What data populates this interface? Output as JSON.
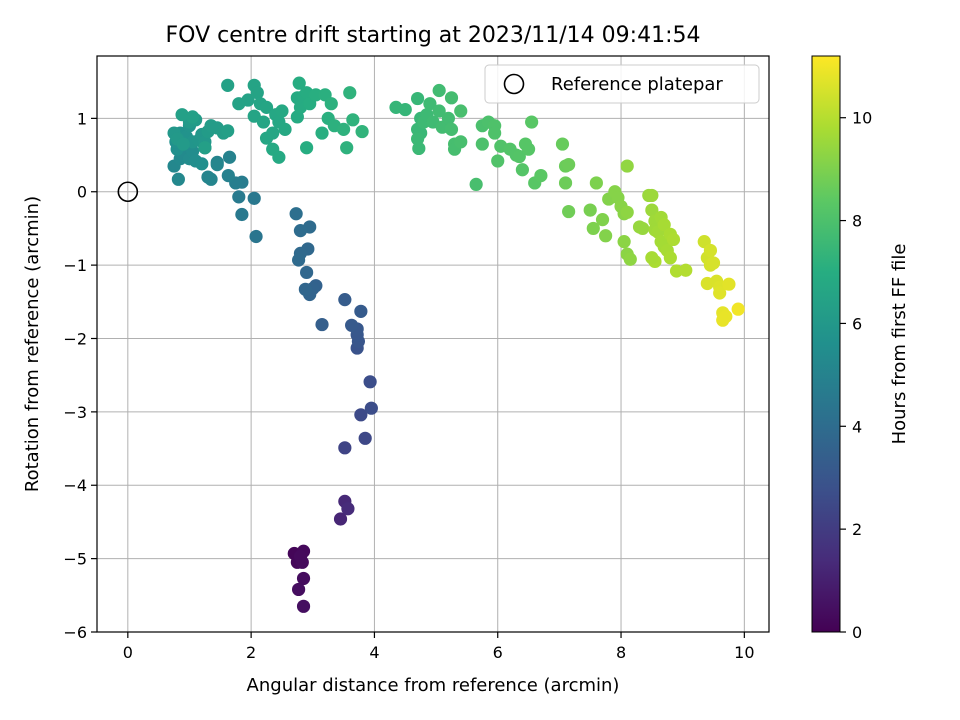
{
  "chart_data": {
    "type": "scatter",
    "title": "FOV centre drift starting at 2023/11/14 09:41:54",
    "xlabel": "Angular distance from reference (arcmin)",
    "ylabel": "Rotation from reference (arcmin)",
    "xlim": [
      -0.5,
      10.4
    ],
    "ylim": [
      -6,
      1.85
    ],
    "xticks": [
      0,
      2,
      4,
      6,
      8,
      10
    ],
    "yticks": [
      -6,
      -5,
      -4,
      -3,
      -2,
      -1,
      0,
      1
    ],
    "xtick_labels": [
      "0",
      "2",
      "4",
      "6",
      "8",
      "10"
    ],
    "ytick_labels": [
      "−6",
      "−5",
      "−4",
      "−3",
      "−2",
      "−1",
      "0",
      "1"
    ],
    "grid": true,
    "colormap": "viridis",
    "colorbar": {
      "label": "Hours from first FF file",
      "range": [
        0,
        11.2
      ],
      "ticks": [
        0,
        2,
        4,
        6,
        8,
        10
      ],
      "tick_labels": [
        "0",
        "2",
        "4",
        "6",
        "8",
        "10"
      ]
    },
    "legend": {
      "placement": "top-right",
      "entries": [
        {
          "label": "Reference platepar",
          "marker": "open-circle",
          "x": 0,
          "y": 0
        }
      ]
    },
    "points": [
      [
        2.7,
        -4.93,
        0.15
      ],
      [
        2.75,
        -5.05,
        0.2
      ],
      [
        2.85,
        -4.9,
        0.25
      ],
      [
        2.83,
        -5.05,
        0.3
      ],
      [
        2.85,
        -5.27,
        0.35
      ],
      [
        2.77,
        -5.42,
        0.4
      ],
      [
        2.85,
        -5.65,
        0.45
      ],
      [
        2.8,
        -4.97,
        0.3
      ],
      [
        3.45,
        -4.46,
        1.2
      ],
      [
        3.52,
        -4.22,
        1.3
      ],
      [
        3.57,
        -4.32,
        1.4
      ],
      [
        3.52,
        -3.49,
        2.3
      ],
      [
        3.85,
        -3.36,
        2.45
      ],
      [
        3.78,
        -3.04,
        2.55
      ],
      [
        3.95,
        -2.95,
        2.65
      ],
      [
        3.93,
        -2.59,
        2.7
      ],
      [
        3.72,
        -2.13,
        2.9
      ],
      [
        3.74,
        -2.04,
        3.0
      ],
      [
        3.72,
        -1.95,
        3.05
      ],
      [
        3.72,
        -1.87,
        3.1
      ],
      [
        3.63,
        -1.82,
        3.2
      ],
      [
        3.78,
        -1.63,
        3.25
      ],
      [
        3.52,
        -1.47,
        3.3
      ],
      [
        3.15,
        -1.81,
        3.4
      ],
      [
        3.05,
        -1.28,
        3.55
      ],
      [
        3.0,
        -1.32,
        3.6
      ],
      [
        2.95,
        -1.4,
        3.65
      ],
      [
        2.88,
        -1.33,
        3.7
      ],
      [
        2.9,
        -1.1,
        3.75
      ],
      [
        2.92,
        -0.78,
        3.8
      ],
      [
        2.8,
        -0.84,
        3.85
      ],
      [
        2.77,
        -0.93,
        3.9
      ],
      [
        2.95,
        -0.48,
        3.95
      ],
      [
        2.8,
        -0.53,
        4.0
      ],
      [
        2.73,
        -0.3,
        4.1
      ],
      [
        2.08,
        -0.61,
        4.4
      ],
      [
        2.05,
        -0.09,
        4.5
      ],
      [
        1.85,
        -0.31,
        4.55
      ],
      [
        1.8,
        -0.07,
        4.6
      ],
      [
        1.85,
        0.13,
        4.7
      ],
      [
        1.75,
        0.12,
        4.8
      ],
      [
        1.63,
        0.22,
        4.9
      ],
      [
        1.65,
        0.47,
        4.95
      ],
      [
        1.45,
        0.4,
        5.0
      ],
      [
        1.3,
        0.2,
        5.05
      ],
      [
        1.35,
        0.17,
        5.1
      ],
      [
        1.45,
        0.37,
        5.15
      ],
      [
        0.75,
        0.35,
        5.2
      ],
      [
        0.82,
        0.17,
        5.25
      ],
      [
        0.85,
        0.45,
        5.3
      ],
      [
        0.9,
        0.5,
        5.35
      ],
      [
        1.0,
        0.45,
        5.4
      ],
      [
        1.05,
        0.55,
        5.45
      ],
      [
        1.1,
        0.42,
        5.5
      ],
      [
        1.2,
        0.38,
        5.55
      ],
      [
        1.25,
        0.6,
        5.6
      ],
      [
        0.8,
        0.58,
        5.6
      ],
      [
        0.78,
        0.68,
        5.65
      ],
      [
        0.85,
        0.8,
        5.7
      ],
      [
        0.95,
        0.75,
        5.75
      ],
      [
        1.0,
        0.9,
        5.8
      ],
      [
        1.05,
        0.68,
        5.85
      ],
      [
        1.15,
        0.7,
        5.9
      ],
      [
        1.2,
        0.78,
        5.95
      ],
      [
        1.25,
        0.68,
        6.0
      ],
      [
        0.75,
        0.8,
        6.0
      ],
      [
        0.8,
        0.72,
        6.05
      ],
      [
        0.9,
        0.65,
        6.1
      ],
      [
        1.0,
        0.95,
        6.1
      ],
      [
        1.1,
        0.98,
        6.15
      ],
      [
        1.3,
        0.82,
        6.15
      ],
      [
        1.35,
        0.9,
        6.2
      ],
      [
        1.45,
        0.87,
        6.2
      ],
      [
        1.55,
        0.8,
        6.25
      ],
      [
        1.62,
        0.83,
        6.3
      ],
      [
        1.25,
        0.6,
        6.3
      ],
      [
        0.88,
        1.05,
        6.35
      ],
      [
        1.05,
        1.02,
        6.35
      ],
      [
        1.62,
        1.45,
        6.4
      ],
      [
        1.8,
        1.2,
        6.45
      ],
      [
        1.95,
        1.25,
        6.45
      ],
      [
        2.05,
        1.45,
        6.5
      ],
      [
        2.1,
        1.35,
        6.5
      ],
      [
        2.05,
        1.03,
        6.55
      ],
      [
        2.15,
        1.2,
        6.55
      ],
      [
        2.25,
        1.15,
        6.6
      ],
      [
        2.2,
        0.95,
        6.6
      ],
      [
        2.25,
        0.73,
        6.65
      ],
      [
        2.35,
        0.8,
        6.65
      ],
      [
        2.4,
        1.05,
        6.7
      ],
      [
        2.45,
        0.95,
        6.7
      ],
      [
        2.5,
        1.1,
        6.75
      ],
      [
        2.55,
        0.85,
        6.75
      ],
      [
        2.35,
        0.58,
        6.8
      ],
      [
        2.45,
        0.47,
        6.8
      ],
      [
        2.75,
        1.28,
        6.85
      ],
      [
        2.75,
        1.02,
        6.85
      ],
      [
        2.8,
        1.15,
        6.9
      ],
      [
        2.85,
        1.3,
        6.9
      ],
      [
        2.78,
        1.48,
        6.95
      ],
      [
        2.9,
        1.35,
        6.95
      ],
      [
        2.95,
        1.2,
        7.0
      ],
      [
        2.9,
        0.6,
        7.0
      ],
      [
        3.05,
        1.32,
        7.05
      ],
      [
        3.15,
        0.8,
        7.05
      ],
      [
        3.2,
        1.32,
        7.1
      ],
      [
        3.25,
        1.0,
        7.1
      ],
      [
        3.3,
        1.2,
        7.15
      ],
      [
        3.35,
        0.9,
        7.15
      ],
      [
        3.5,
        0.85,
        7.2
      ],
      [
        3.55,
        0.6,
        7.2
      ],
      [
        3.6,
        1.35,
        7.25
      ],
      [
        3.65,
        0.98,
        7.25
      ],
      [
        3.8,
        0.82,
        7.3
      ],
      [
        4.35,
        1.15,
        7.4
      ],
      [
        4.5,
        1.12,
        7.4
      ],
      [
        4.7,
        1.27,
        7.45
      ],
      [
        4.75,
        1.0,
        7.45
      ],
      [
        4.7,
        0.85,
        7.5
      ],
      [
        4.75,
        0.8,
        7.5
      ],
      [
        4.7,
        0.72,
        7.55
      ],
      [
        4.72,
        0.59,
        7.55
      ],
      [
        4.8,
        0.95,
        7.6
      ],
      [
        4.85,
        1.05,
        7.6
      ],
      [
        4.9,
        1.2,
        7.65
      ],
      [
        4.95,
        0.95,
        7.65
      ],
      [
        5.05,
        1.38,
        7.7
      ],
      [
        5.05,
        1.1,
        7.7
      ],
      [
        5.1,
        0.88,
        7.75
      ],
      [
        5.2,
        1.0,
        7.75
      ],
      [
        5.25,
        0.85,
        7.8
      ],
      [
        5.25,
        1.28,
        7.8
      ],
      [
        5.3,
        0.65,
        7.85
      ],
      [
        5.3,
        0.58,
        7.85
      ],
      [
        5.4,
        1.1,
        7.9
      ],
      [
        5.4,
        0.68,
        7.9
      ],
      [
        5.65,
        0.1,
        7.9
      ],
      [
        5.75,
        0.9,
        7.95
      ],
      [
        5.75,
        0.65,
        8.0
      ],
      [
        5.85,
        0.95,
        8.0
      ],
      [
        5.95,
        0.9,
        8.05
      ],
      [
        5.95,
        0.8,
        8.05
      ],
      [
        6.0,
        0.42,
        8.1
      ],
      [
        6.05,
        0.62,
        8.1
      ],
      [
        6.2,
        0.58,
        8.15
      ],
      [
        6.3,
        0.5,
        8.15
      ],
      [
        6.35,
        0.48,
        8.2
      ],
      [
        6.4,
        0.3,
        8.2
      ],
      [
        6.45,
        0.65,
        8.25
      ],
      [
        6.5,
        0.58,
        8.25
      ],
      [
        6.55,
        0.95,
        8.3
      ],
      [
        6.6,
        0.12,
        8.3
      ],
      [
        6.7,
        0.22,
        8.35
      ],
      [
        7.05,
        0.65,
        8.6
      ],
      [
        7.1,
        0.35,
        8.65
      ],
      [
        7.1,
        0.12,
        8.7
      ],
      [
        7.15,
        0.37,
        8.7
      ],
      [
        7.15,
        -0.27,
        8.75
      ],
      [
        7.5,
        -0.25,
        8.9
      ],
      [
        7.55,
        -0.5,
        9.0
      ],
      [
        7.6,
        0.12,
        9.0
      ],
      [
        7.7,
        -0.38,
        9.05
      ],
      [
        7.75,
        -0.6,
        9.1
      ],
      [
        7.8,
        -0.1,
        9.1
      ],
      [
        7.9,
        0.0,
        9.15
      ],
      [
        7.95,
        -0.08,
        9.15
      ],
      [
        8.0,
        -0.2,
        9.2
      ],
      [
        8.05,
        -0.3,
        9.2
      ],
      [
        8.05,
        -0.68,
        9.25
      ],
      [
        8.1,
        -0.85,
        9.25
      ],
      [
        8.1,
        -0.28,
        9.3
      ],
      [
        8.15,
        -0.92,
        9.3
      ],
      [
        8.1,
        0.35,
        9.35
      ],
      [
        8.3,
        -0.48,
        9.45
      ],
      [
        8.35,
        -0.5,
        9.45
      ],
      [
        8.45,
        -0.05,
        9.5
      ],
      [
        8.5,
        -0.25,
        9.55
      ],
      [
        8.5,
        -0.05,
        9.55
      ],
      [
        8.55,
        -0.4,
        9.6
      ],
      [
        8.55,
        -0.52,
        9.6
      ],
      [
        8.6,
        -0.55,
        9.65
      ],
      [
        8.65,
        -0.35,
        9.65
      ],
      [
        8.65,
        -0.68,
        9.7
      ],
      [
        8.7,
        -0.75,
        9.7
      ],
      [
        8.7,
        -0.45,
        9.75
      ],
      [
        8.75,
        -0.8,
        9.75
      ],
      [
        8.8,
        -0.58,
        9.8
      ],
      [
        8.8,
        -0.9,
        9.8
      ],
      [
        8.85,
        -0.65,
        9.85
      ],
      [
        8.55,
        -0.95,
        9.8
      ],
      [
        8.5,
        -0.9,
        9.75
      ],
      [
        8.9,
        -1.08,
        9.9
      ],
      [
        9.05,
        -1.07,
        9.95
      ],
      [
        9.35,
        -0.68,
        10.4
      ],
      [
        9.4,
        -0.9,
        10.45
      ],
      [
        9.45,
        -1.0,
        10.5
      ],
      [
        9.45,
        -0.8,
        10.5
      ],
      [
        9.5,
        -0.97,
        10.55
      ],
      [
        9.4,
        -1.25,
        10.6
      ],
      [
        9.55,
        -1.22,
        10.6
      ],
      [
        9.6,
        -1.3,
        10.65
      ],
      [
        9.6,
        -1.38,
        10.7
      ],
      [
        9.75,
        -1.26,
        10.75
      ],
      [
        9.65,
        -1.65,
        10.8
      ],
      [
        9.7,
        -1.7,
        10.85
      ],
      [
        9.65,
        -1.75,
        10.85
      ],
      [
        9.9,
        -1.6,
        11.0
      ]
    ]
  }
}
